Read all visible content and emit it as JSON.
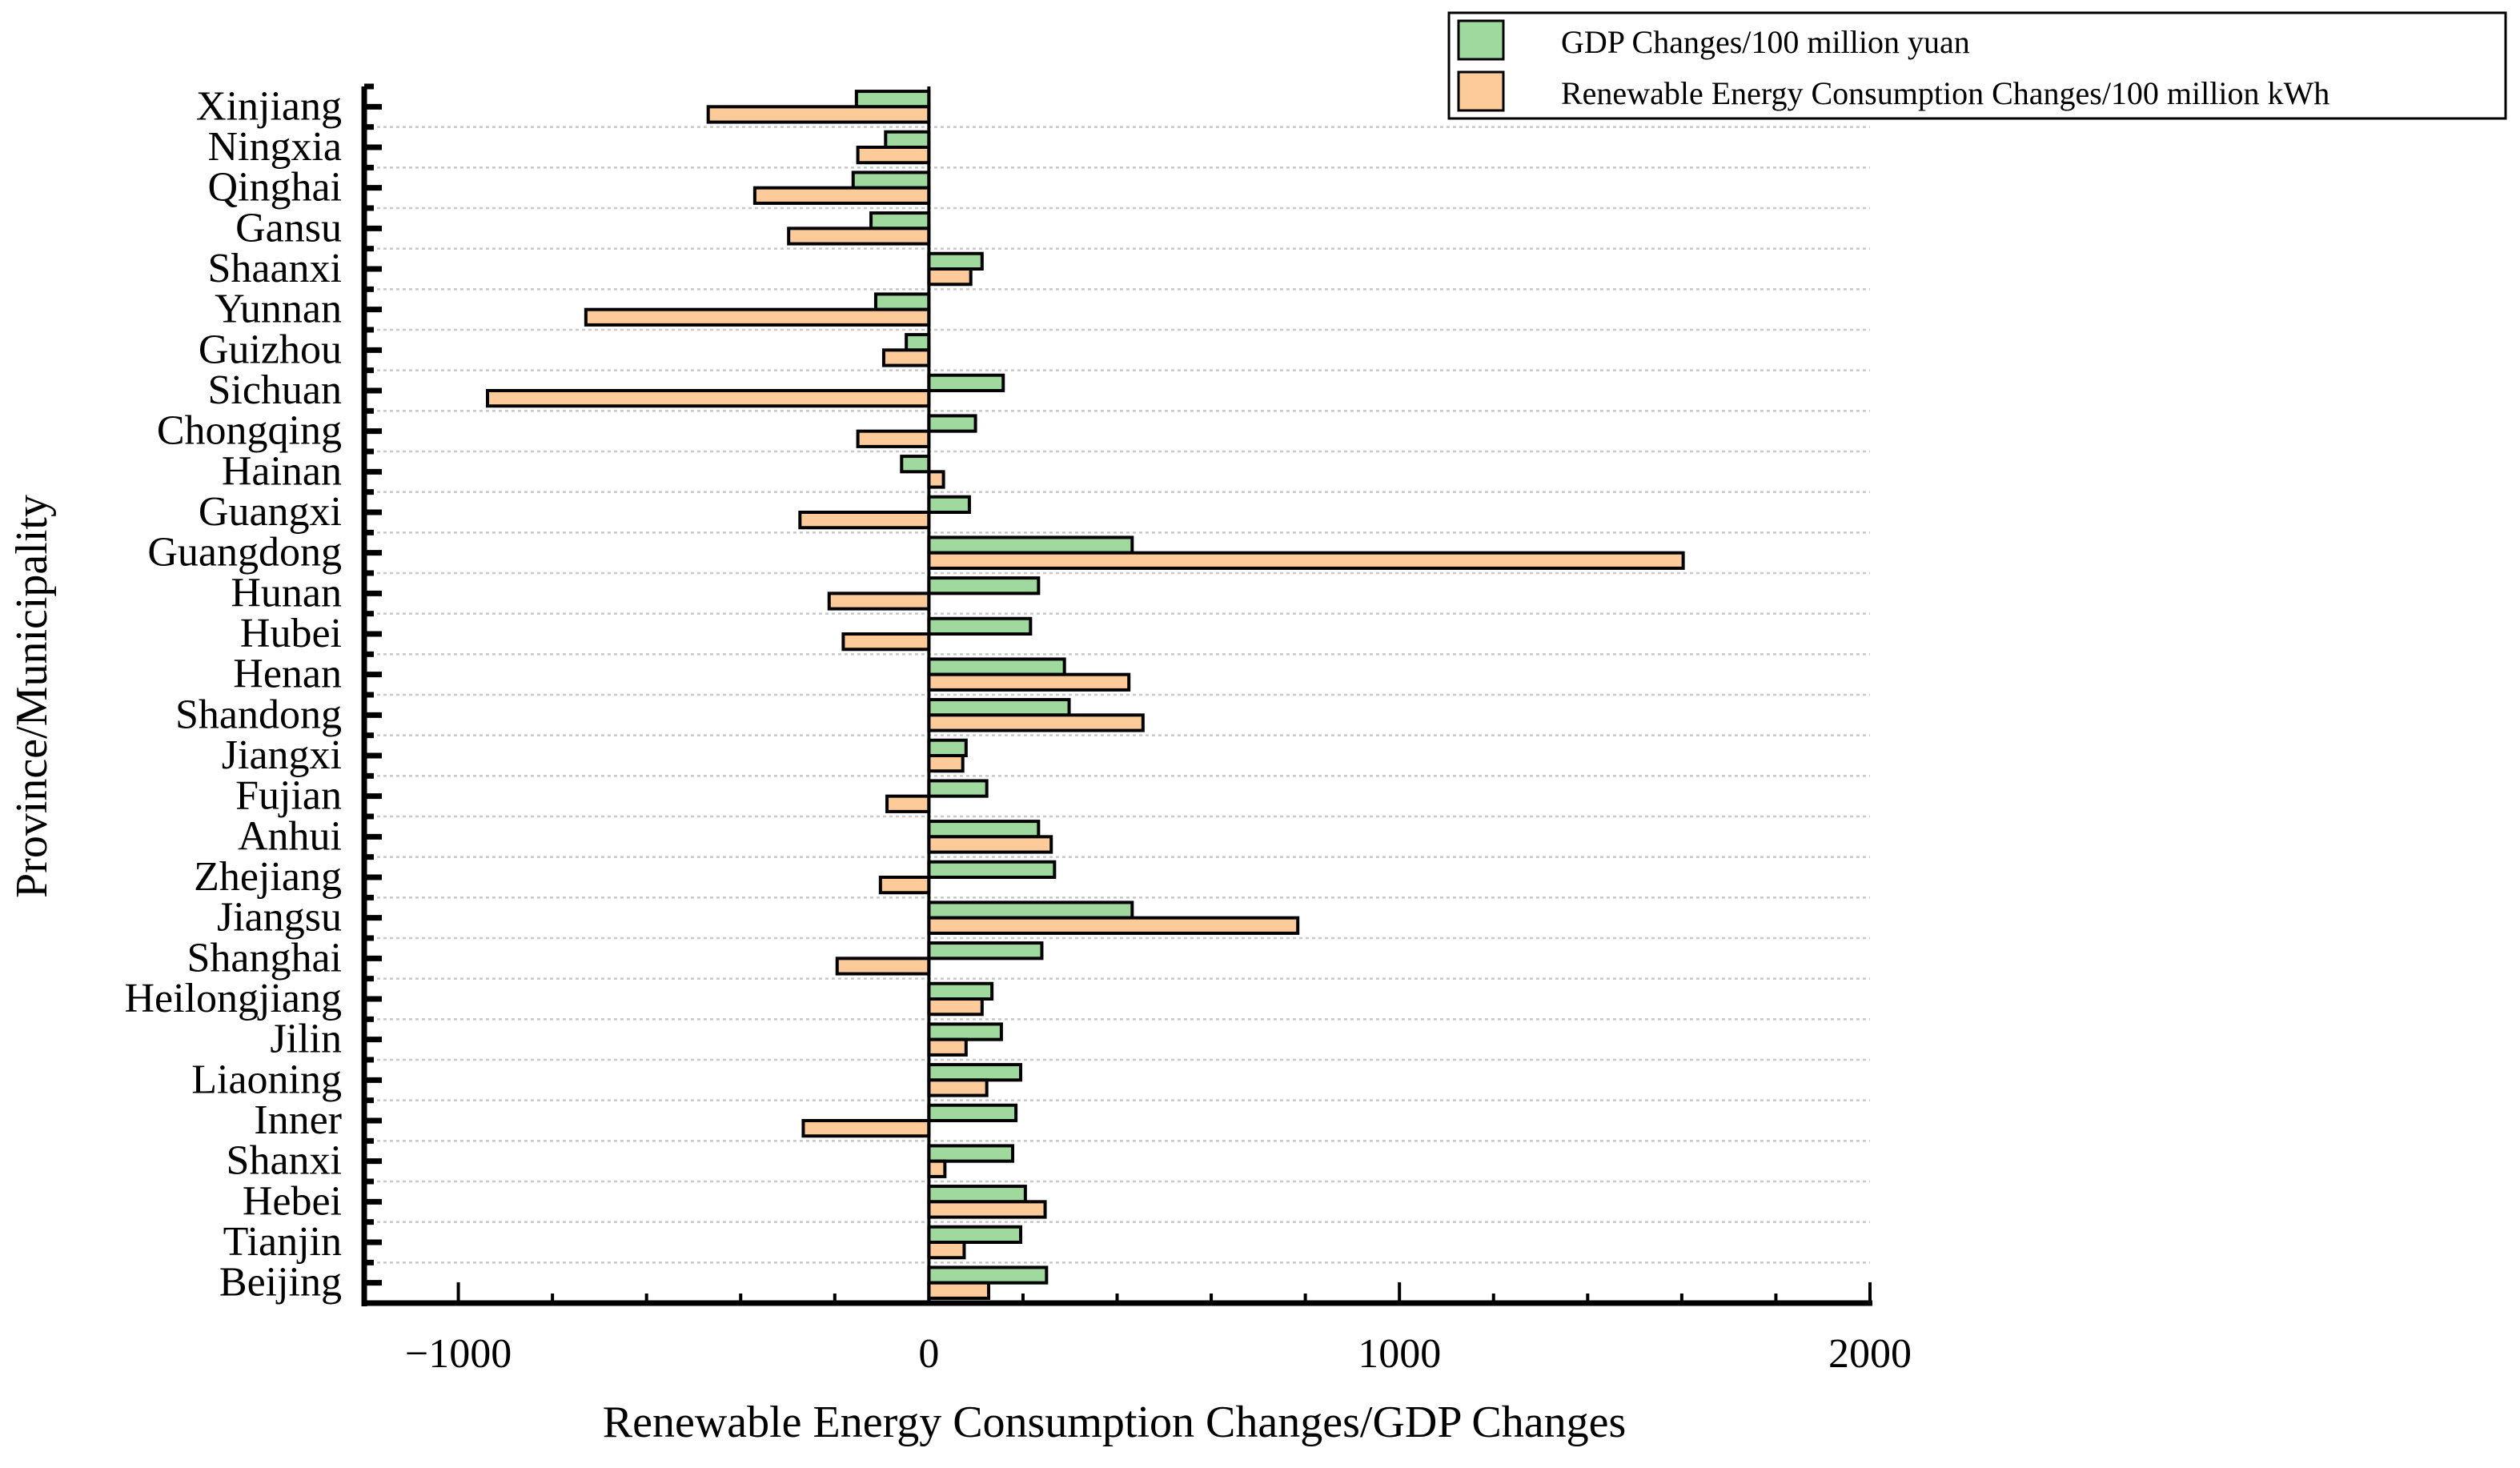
{
  "chart_data": {
    "type": "bar",
    "orientation": "horizontal",
    "xlabel": "Renewable Energy Consumption Changes/GDP Changes",
    "ylabel": "Province/Municipality",
    "xlim": [
      -1200,
      2000
    ],
    "xticks": [
      -1000,
      0,
      1000,
      2000
    ],
    "xtick_labels": [
      "−1000",
      "0",
      "1000",
      "2000"
    ],
    "grid": "horizontal dotted",
    "legend_position": "top-right",
    "categories": [
      "Xinjiang",
      "Ningxia",
      "Qinghai",
      "Gansu",
      "Shaanxi",
      "Yunnan",
      "Guizhou",
      "Sichuan",
      "Chongqing",
      "Hainan",
      "Guangxi",
      "Guangdong",
      "Hunan",
      "Hubei",
      "Henan",
      "Shandong",
      "Jiangxi",
      "Fujian",
      "Anhui",
      "Zhejiang",
      "Jiangsu",
      "Shanghai",
      "Heilongjiang",
      "Jilin",
      "Liaoning",
      "Inner",
      "Shanxi",
      "Hebei",
      "Tianjin",
      "Beijing"
    ],
    "series": [
      {
        "name": "GDP Changes/100 million yuan",
        "color": "#a0d99e",
        "values": [
          -154,
          -92,
          -161,
          -123,
          113,
          -113,
          -48,
          158,
          99,
          -58,
          86,
          432,
          233,
          216,
          288,
          298,
          79,
          123,
          233,
          267,
          432,
          240,
          134,
          154,
          195,
          185,
          178,
          205,
          195,
          250
        ]
      },
      {
        "name": "Renewable Energy Consumption Changes/100 million kWh",
        "color": "#fdcb99",
        "values": [
          -469,
          -151,
          -370,
          -298,
          89,
          -729,
          -96,
          -938,
          -151,
          31,
          -274,
          1603,
          -212,
          -182,
          425,
          455,
          72,
          -89,
          260,
          -103,
          784,
          -195,
          113,
          79,
          123,
          -267,
          34,
          247,
          75,
          127
        ]
      }
    ]
  }
}
